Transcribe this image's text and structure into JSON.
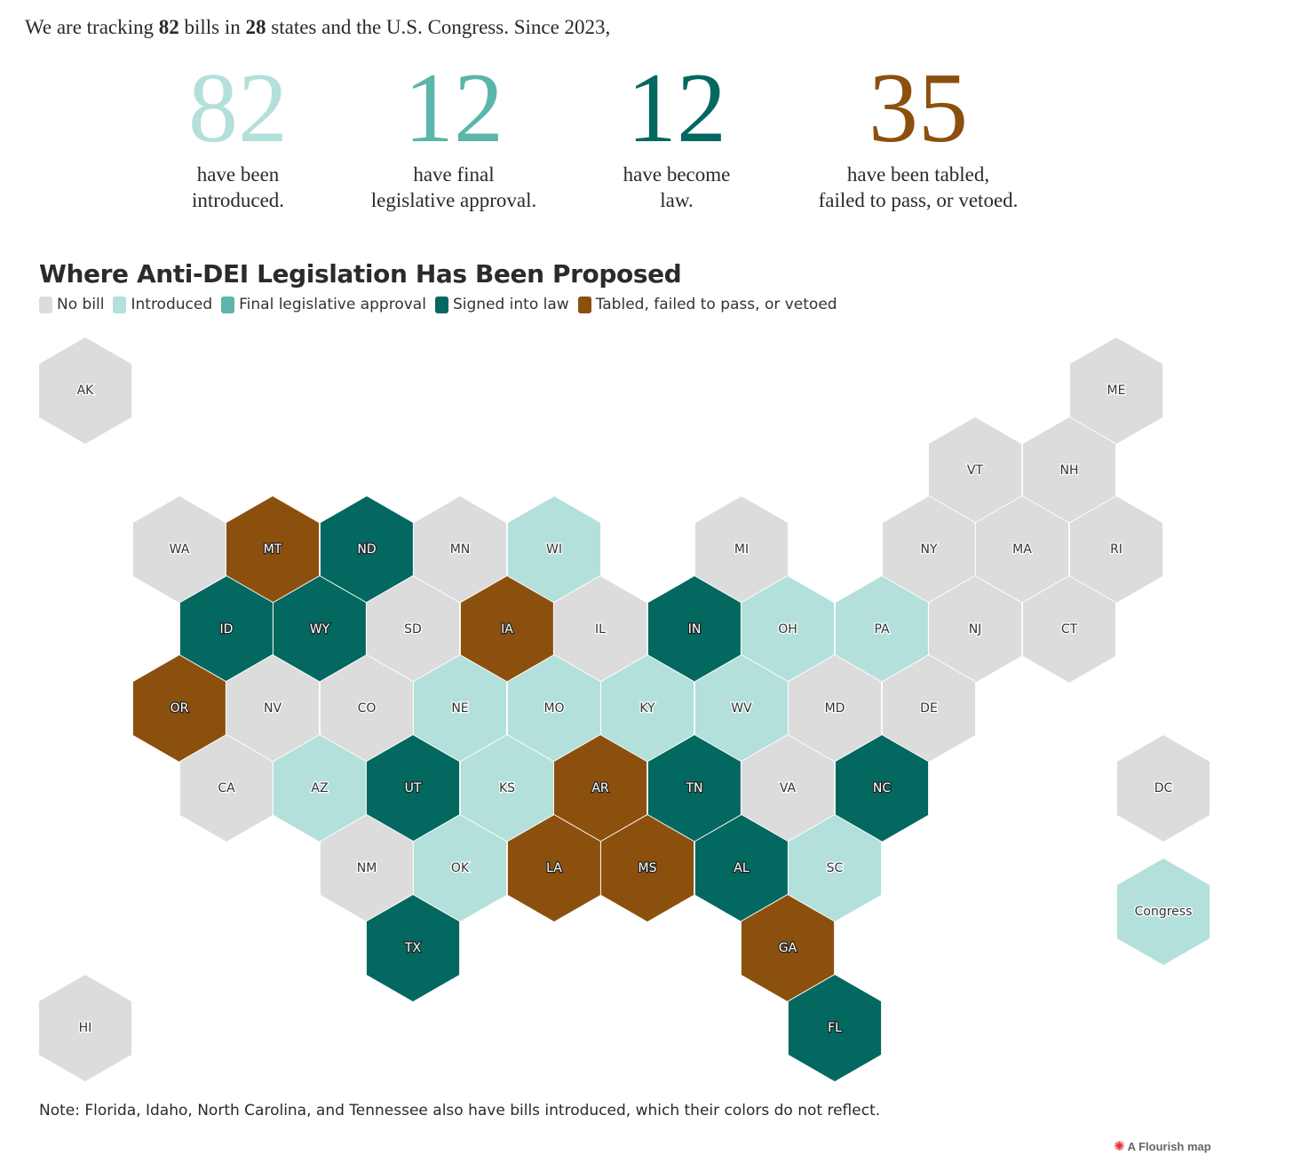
{
  "intro": {
    "prefix": "We are tracking ",
    "bills_count": "82",
    "middle": " bills in ",
    "states_count": "28",
    "suffix": " states and the U.S. Congress. Since 2023,"
  },
  "stats": [
    {
      "number": "82",
      "label": "have been\nintroduced.",
      "color": "#b3e0db"
    },
    {
      "number": "12",
      "label": "have final\nlegislative approval.",
      "color": "#5bb5aa"
    },
    {
      "number": "12",
      "label": "have become\nlaw.",
      "color": "#03685f"
    },
    {
      "number": "35",
      "label": "have been tabled,\nfailed to pass, or vetoed.",
      "color": "#8c500e"
    }
  ],
  "chart_data": {
    "type": "hex tile map",
    "title": "Where Anti-DEI Legislation Has Been Proposed",
    "legend": [
      {
        "key": "none",
        "label": "No bill",
        "color": "#dcdcdc"
      },
      {
        "key": "introduced",
        "label": "Introduced",
        "color": "#b3e0db"
      },
      {
        "key": "final",
        "label": "Final legislative approval",
        "color": "#5bb5aa"
      },
      {
        "key": "law",
        "label": "Signed into law",
        "color": "#03685f"
      },
      {
        "key": "tabled",
        "label": "Tabled, failed to pass, or vetoed",
        "color": "#8c500e"
      }
    ],
    "tiles": [
      {
        "label": "AK",
        "status": "none"
      },
      {
        "label": "ME",
        "status": "none"
      },
      {
        "label": "VT",
        "status": "none"
      },
      {
        "label": "NH",
        "status": "none"
      },
      {
        "label": "WA",
        "status": "none"
      },
      {
        "label": "MT",
        "status": "tabled"
      },
      {
        "label": "ND",
        "status": "law"
      },
      {
        "label": "MN",
        "status": "none"
      },
      {
        "label": "WI",
        "status": "introduced"
      },
      {
        "label": "MI",
        "status": "none"
      },
      {
        "label": "NY",
        "status": "none"
      },
      {
        "label": "MA",
        "status": "none"
      },
      {
        "label": "RI",
        "status": "none"
      },
      {
        "label": "ID",
        "status": "law"
      },
      {
        "label": "WY",
        "status": "law"
      },
      {
        "label": "SD",
        "status": "none"
      },
      {
        "label": "IA",
        "status": "tabled"
      },
      {
        "label": "IL",
        "status": "none"
      },
      {
        "label": "IN",
        "status": "law"
      },
      {
        "label": "OH",
        "status": "introduced"
      },
      {
        "label": "PA",
        "status": "introduced"
      },
      {
        "label": "NJ",
        "status": "none"
      },
      {
        "label": "CT",
        "status": "none"
      },
      {
        "label": "OR",
        "status": "tabled"
      },
      {
        "label": "NV",
        "status": "none"
      },
      {
        "label": "CO",
        "status": "none"
      },
      {
        "label": "NE",
        "status": "introduced"
      },
      {
        "label": "MO",
        "status": "introduced"
      },
      {
        "label": "KY",
        "status": "introduced"
      },
      {
        "label": "WV",
        "status": "introduced"
      },
      {
        "label": "MD",
        "status": "none"
      },
      {
        "label": "DE",
        "status": "none"
      },
      {
        "label": "CA",
        "status": "none"
      },
      {
        "label": "AZ",
        "status": "introduced"
      },
      {
        "label": "UT",
        "status": "law"
      },
      {
        "label": "KS",
        "status": "introduced"
      },
      {
        "label": "AR",
        "status": "tabled"
      },
      {
        "label": "TN",
        "status": "law"
      },
      {
        "label": "VA",
        "status": "none"
      },
      {
        "label": "NC",
        "status": "law"
      },
      {
        "label": "DC",
        "status": "none"
      },
      {
        "label": "NM",
        "status": "none"
      },
      {
        "label": "OK",
        "status": "introduced"
      },
      {
        "label": "LA",
        "status": "tabled"
      },
      {
        "label": "MS",
        "status": "tabled"
      },
      {
        "label": "AL",
        "status": "law"
      },
      {
        "label": "SC",
        "status": "introduced"
      },
      {
        "label": "Congress",
        "status": "introduced"
      },
      {
        "label": "TX",
        "status": "law"
      },
      {
        "label": "GA",
        "status": "tabled"
      },
      {
        "label": "HI",
        "status": "none"
      },
      {
        "label": "FL",
        "status": "law"
      }
    ]
  },
  "note": "Note: Florida, Idaho, North Carolina, and Tennessee also have bills introduced, which their colors do not reflect.",
  "credit": {
    "label": "A Flourish map",
    "icon": "flourish-star-icon"
  }
}
